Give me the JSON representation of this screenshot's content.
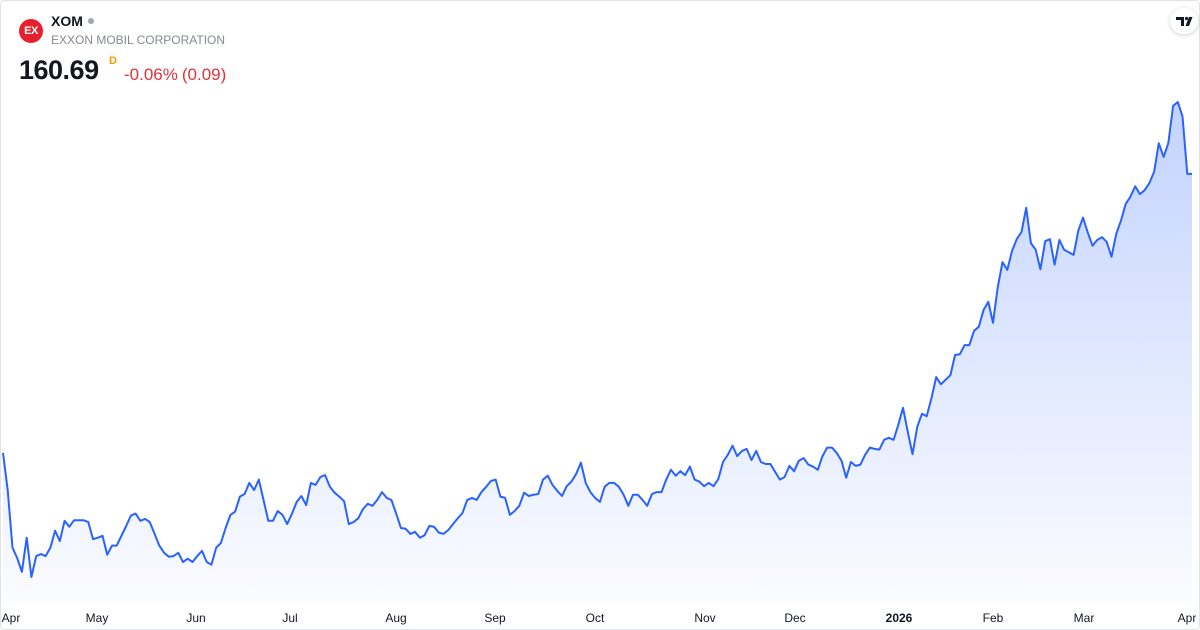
{
  "header": {
    "logo_text": "EX",
    "symbol": "XOM",
    "name": "EXXON MOBIL CORPORATION",
    "price": 160.69,
    "interval": "D",
    "change_percent": "-0.06%",
    "change_abs": "(0.09)"
  },
  "chart_data": {
    "type": "area",
    "color": "#2962ff",
    "x_labels": [
      "Apr",
      "May",
      "Jun",
      "Jul",
      "Aug",
      "Sep",
      "Oct",
      "Nov",
      "Dec",
      "2026",
      "Feb",
      "Mar",
      "Apr"
    ],
    "values": [
      118.0,
      112.3,
      103.5,
      101.9,
      99.8,
      105.0,
      99.0,
      102.2,
      102.5,
      102.2,
      103.5,
      106.1,
      104.5,
      107.6,
      106.7,
      107.7,
      107.7,
      107.7,
      107.4,
      104.8,
      105.0,
      105.3,
      102.4,
      103.8,
      103.8,
      105.3,
      106.8,
      108.4,
      108.7,
      107.6,
      107.9,
      107.4,
      105.6,
      103.8,
      102.7,
      102.1,
      102.2,
      102.7,
      101.3,
      101.8,
      101.3,
      102.2,
      103.0,
      101.3,
      100.9,
      103.5,
      104.2,
      106.5,
      108.5,
      109.0,
      111.3,
      111.7,
      113.4,
      112.3,
      113.9,
      110.8,
      107.6,
      107.6,
      109.1,
      108.5,
      107.1,
      108.7,
      110.5,
      111.4,
      110.0,
      113.4,
      113.1,
      114.3,
      114.6,
      112.8,
      111.9,
      111.3,
      110.6,
      107.1,
      107.4,
      108.0,
      109.4,
      110.2,
      109.9,
      110.8,
      112.0,
      111.1,
      110.8,
      108.7,
      106.5,
      106.4,
      105.6,
      105.9,
      105.0,
      105.4,
      106.8,
      106.7,
      105.8,
      105.6,
      106.2,
      107.1,
      108.0,
      108.8,
      110.8,
      111.1,
      110.8,
      112.0,
      112.8,
      113.7,
      113.9,
      111.3,
      111.1,
      108.5,
      109.1,
      109.9,
      111.9,
      111.4,
      111.6,
      111.7,
      113.9,
      114.5,
      113.1,
      112.2,
      111.4,
      112.9,
      113.6,
      114.8,
      116.5,
      113.4,
      112.0,
      111.1,
      110.5,
      112.8,
      113.4,
      113.4,
      112.8,
      111.6,
      109.9,
      111.6,
      111.6,
      110.8,
      109.9,
      111.7,
      112.0,
      112.0,
      113.9,
      115.4,
      114.5,
      115.2,
      114.6,
      115.9,
      113.9,
      113.6,
      112.9,
      113.4,
      112.9,
      114.0,
      116.6,
      117.7,
      119.1,
      117.5,
      118.3,
      118.6,
      116.9,
      118.3,
      116.6,
      116.3,
      116.3,
      115.1,
      113.9,
      114.3,
      116.0,
      115.2,
      116.8,
      117.2,
      116.2,
      115.9,
      115.4,
      117.5,
      118.8,
      118.8,
      118.0,
      116.8,
      114.2,
      116.6,
      116.0,
      116.2,
      117.7,
      118.8,
      118.6,
      118.5,
      120.0,
      120.3,
      120.0,
      122.3,
      124.9,
      121.2,
      117.8,
      122.0,
      124.0,
      123.6,
      126.4,
      129.6,
      128.5,
      129.2,
      129.9,
      133.0,
      133.1,
      134.5,
      134.5,
      136.7,
      137.3,
      139.9,
      141.1,
      137.9,
      143.4,
      147.2,
      146.0,
      148.9,
      150.7,
      151.8,
      155.5,
      150.1,
      149.1,
      146.1,
      150.4,
      150.7,
      146.8,
      150.6,
      149.1,
      148.7,
      148.3,
      152.0,
      154.0,
      151.7,
      149.7,
      150.6,
      151.0,
      150.3,
      148.0,
      151.5,
      153.5,
      156.1,
      157.2,
      158.8,
      157.6,
      158.2,
      159.3,
      161.0,
      165.4,
      163.3,
      165.4,
      171.1,
      171.7,
      169.5,
      160.7,
      160.69
    ]
  }
}
